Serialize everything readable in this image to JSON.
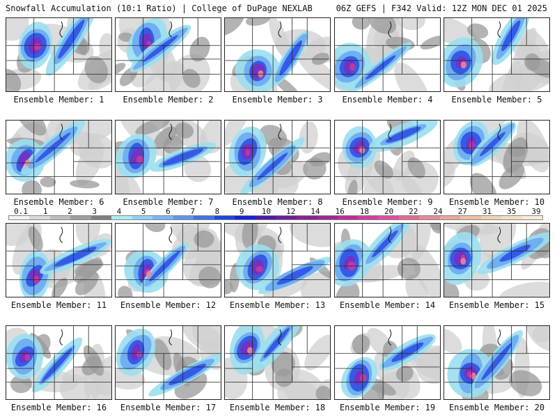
{
  "header": {
    "left": "Snowfall Accumulation (10:1 Ratio) | College of DuPage NEXLAB",
    "right": "06Z GEFS | F342 Valid: 12Z MON DEC 01 2025"
  },
  "caption_prefix": "Ensemble Member:",
  "members": [
    {
      "number": 1,
      "caption": "Ensemble Member: 1"
    },
    {
      "number": 2,
      "caption": "Ensemble Member: 2"
    },
    {
      "number": 3,
      "caption": "Ensemble Member: 3"
    },
    {
      "number": 4,
      "caption": "Ensemble Member: 4"
    },
    {
      "number": 5,
      "caption": "Ensemble Member: 5"
    },
    {
      "number": 6,
      "caption": "Ensemble Member: 6"
    },
    {
      "number": 7,
      "caption": "Ensemble Member: 7"
    },
    {
      "number": 8,
      "caption": "Ensemble Member: 8"
    },
    {
      "number": 9,
      "caption": "Ensemble Member: 9"
    },
    {
      "number": 10,
      "caption": "Ensemble Member: 10"
    },
    {
      "number": 11,
      "caption": "Ensemble Member: 11"
    },
    {
      "number": 12,
      "caption": "Ensemble Member: 12"
    },
    {
      "number": 13,
      "caption": "Ensemble Member: 13"
    },
    {
      "number": 14,
      "caption": "Ensemble Member: 14"
    },
    {
      "number": 15,
      "caption": "Ensemble Member: 15"
    },
    {
      "number": 16,
      "caption": "Ensemble Member: 16"
    },
    {
      "number": 17,
      "caption": "Ensemble Member: 17"
    },
    {
      "number": 18,
      "caption": "Ensemble Member: 18"
    },
    {
      "number": 19,
      "caption": "Ensemble Member: 19"
    },
    {
      "number": 20,
      "caption": "Ensemble Member: 20"
    }
  ],
  "colorbar": {
    "labels": [
      "0.1",
      "1",
      "2",
      "3",
      "4",
      "5",
      "6",
      "7",
      "8",
      "9",
      "10",
      "12",
      "14",
      "16",
      "18",
      "20",
      "22",
      "24",
      "27",
      "31",
      "35",
      "39"
    ],
    "colors": [
      "#f2f2f2",
      "#d9d9d9",
      "#bdbdbd",
      "#9e9e9e",
      "#7f7f7f",
      "#a8eef2",
      "#8fd1f5",
      "#78b6f6",
      "#5b96f0",
      "#3c73ea",
      "#1d46e0",
      "#1a20d8",
      "#4a1aa8",
      "#6a1f9c",
      "#8a2196",
      "#a52494",
      "#c22a98",
      "#d63aa0",
      "#e04d9e",
      "#e36a98",
      "#e68a96",
      "#eaa69a",
      "#edbfa4",
      "#f0d2b2",
      "#f3e0c2",
      "#f5ecd6"
    ]
  },
  "colors": {
    "background": "#ffffff",
    "state_lines": "#222222",
    "county_lines": "#8a8a8a"
  }
}
